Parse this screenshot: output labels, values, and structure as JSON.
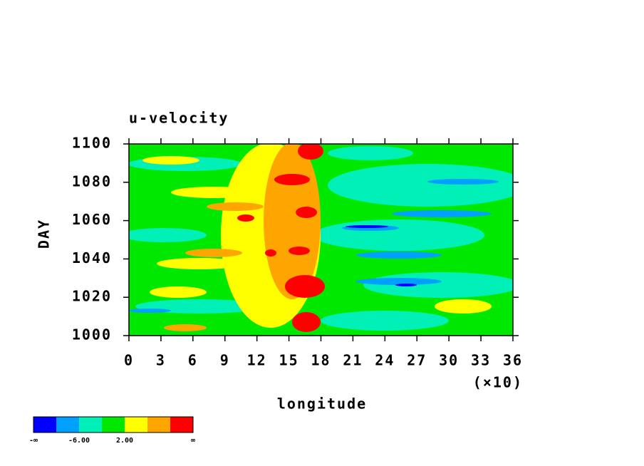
{
  "chart_data": {
    "type": "contour",
    "title": "u-velocity",
    "x_label": "longitude",
    "x_multiplier": "(×10)",
    "y_label": "DAY",
    "xlim": [
      0,
      36
    ],
    "xticks": [
      0,
      3,
      6,
      9,
      12,
      15,
      18,
      21,
      24,
      27,
      30,
      33,
      36
    ],
    "ylim": [
      1000,
      1100
    ],
    "yticks": [
      1000,
      1020,
      1040,
      1060,
      1080,
      1100
    ],
    "colorbar": {
      "colors": [
        "#0000ff",
        "#00a0ff",
        "#00f0b8",
        "#00e800",
        "#ffff00",
        "#ffa500",
        "#ff0000"
      ],
      "labels": [
        "-∞",
        "-6.00",
        "2.00",
        "∞"
      ]
    }
  }
}
